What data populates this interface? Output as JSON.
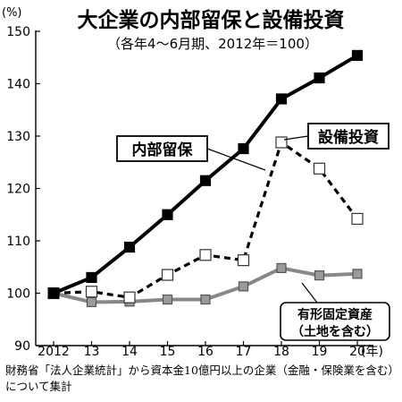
{
  "chart_data": {
    "type": "line",
    "title": "大企業の内部留保と設備投資",
    "subtitle": "（各年4～6月期、2012年＝100）",
    "y_unit": "(%)",
    "x_unit": "(年)",
    "x": [
      "2012",
      "13",
      "14",
      "15",
      "16",
      "17",
      "18",
      "19",
      "20"
    ],
    "ylim": [
      90,
      150
    ],
    "yticks": [
      90,
      100,
      110,
      120,
      130,
      140,
      150
    ],
    "grid": false,
    "series": [
      {
        "name": "内部留保",
        "values": [
          100,
          103,
          108.8,
          115,
          121.5,
          127.6,
          137.1,
          141.1,
          145.4
        ],
        "color": "#000000",
        "style": "solid",
        "marker": "filled-square"
      },
      {
        "name": "設備投資",
        "values": [
          100,
          100.3,
          99.2,
          103.5,
          107.3,
          106.3,
          128.8,
          123.8,
          114.2
        ],
        "color": "#000000",
        "style": "dashed",
        "marker": "open-square"
      },
      {
        "name": "有形固定資産（土地を含む）",
        "values": [
          100,
          98.3,
          98.4,
          98.8,
          98.8,
          101.3,
          104.8,
          103.4,
          103.7
        ],
        "color": "#808080",
        "style": "solid",
        "marker": "gray-square"
      }
    ],
    "labels": {
      "internal_reserves": "内部留保",
      "capex": "設備投資",
      "fixed_assets_line1": "有形固定資産",
      "fixed_assets_line2": "（土地を含む）"
    }
  },
  "footnote": "財務省「法人企業統計」から資本金10億円以上の企業（金融・保険業を含む）について集計"
}
